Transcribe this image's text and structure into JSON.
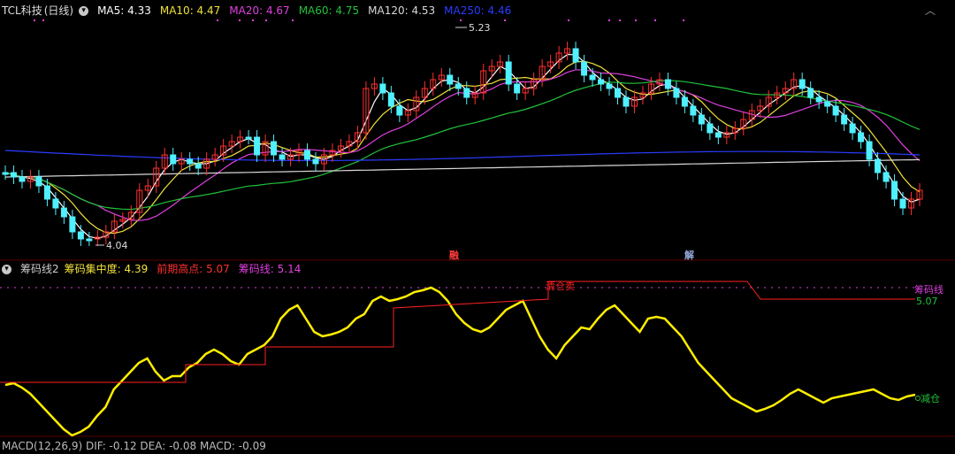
{
  "stock": {
    "name": "TCL科技",
    "period": "(日线)"
  },
  "ma_indicators": [
    {
      "label": "MA5: 4.33",
      "color": "#ffffff"
    },
    {
      "label": "MA10: 4.47",
      "color": "#f2e23a"
    },
    {
      "label": "MA20: 4.67",
      "color": "#e040e0"
    },
    {
      "label": "MA60: 4.75",
      "color": "#22c33a"
    },
    {
      "label": "MA120: 4.53",
      "color": "#d8d8d8"
    },
    {
      "label": "MA250: 4.46",
      "color": "#2a3cff"
    }
  ],
  "price_annotations": {
    "high": "5.23",
    "low": "4.04"
  },
  "event_tags": {
    "tag1": "融",
    "tag2": "解"
  },
  "indicator_panel": {
    "name": "筹码线2",
    "items": [
      {
        "label": "筹码集中度: 4.39",
        "color": "#f2e23a"
      },
      {
        "label": "前期高点: 5.07",
        "color": "#ff3030"
      },
      {
        "label": "筹码线: 5.14",
        "color": "#e040e0"
      }
    ],
    "line_label": "筹码线",
    "line_value": "5.07",
    "end_label": "减仓",
    "peak_label": "清仓卖"
  },
  "macd_header": "MACD(12,26,9)  DIF: -0.12  DEA: -0.08  MACD: -0.09",
  "colors": {
    "up": "#ff3030",
    "down": "#4ff0ff",
    "ma5": "#ffffff",
    "ma10": "#f2e23a",
    "ma20": "#e040e0",
    "ma60": "#22c33a",
    "ma120": "#d8d8d8",
    "ma250": "#2a3cff",
    "chip": "#ffee00",
    "prev_high": "#ff2020",
    "grid": "#3a0000"
  }
}
